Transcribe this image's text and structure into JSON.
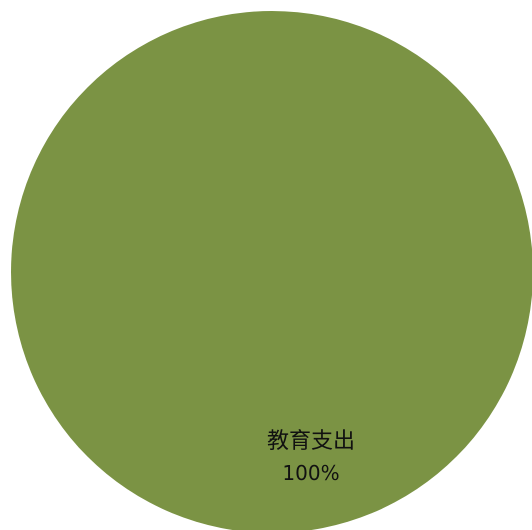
{
  "chart_data": {
    "type": "pie",
    "title": "",
    "slices": [
      {
        "label": "教育支出",
        "value": 100,
        "value_label": "100%",
        "color": "#7b9344"
      }
    ],
    "legend": "none"
  }
}
